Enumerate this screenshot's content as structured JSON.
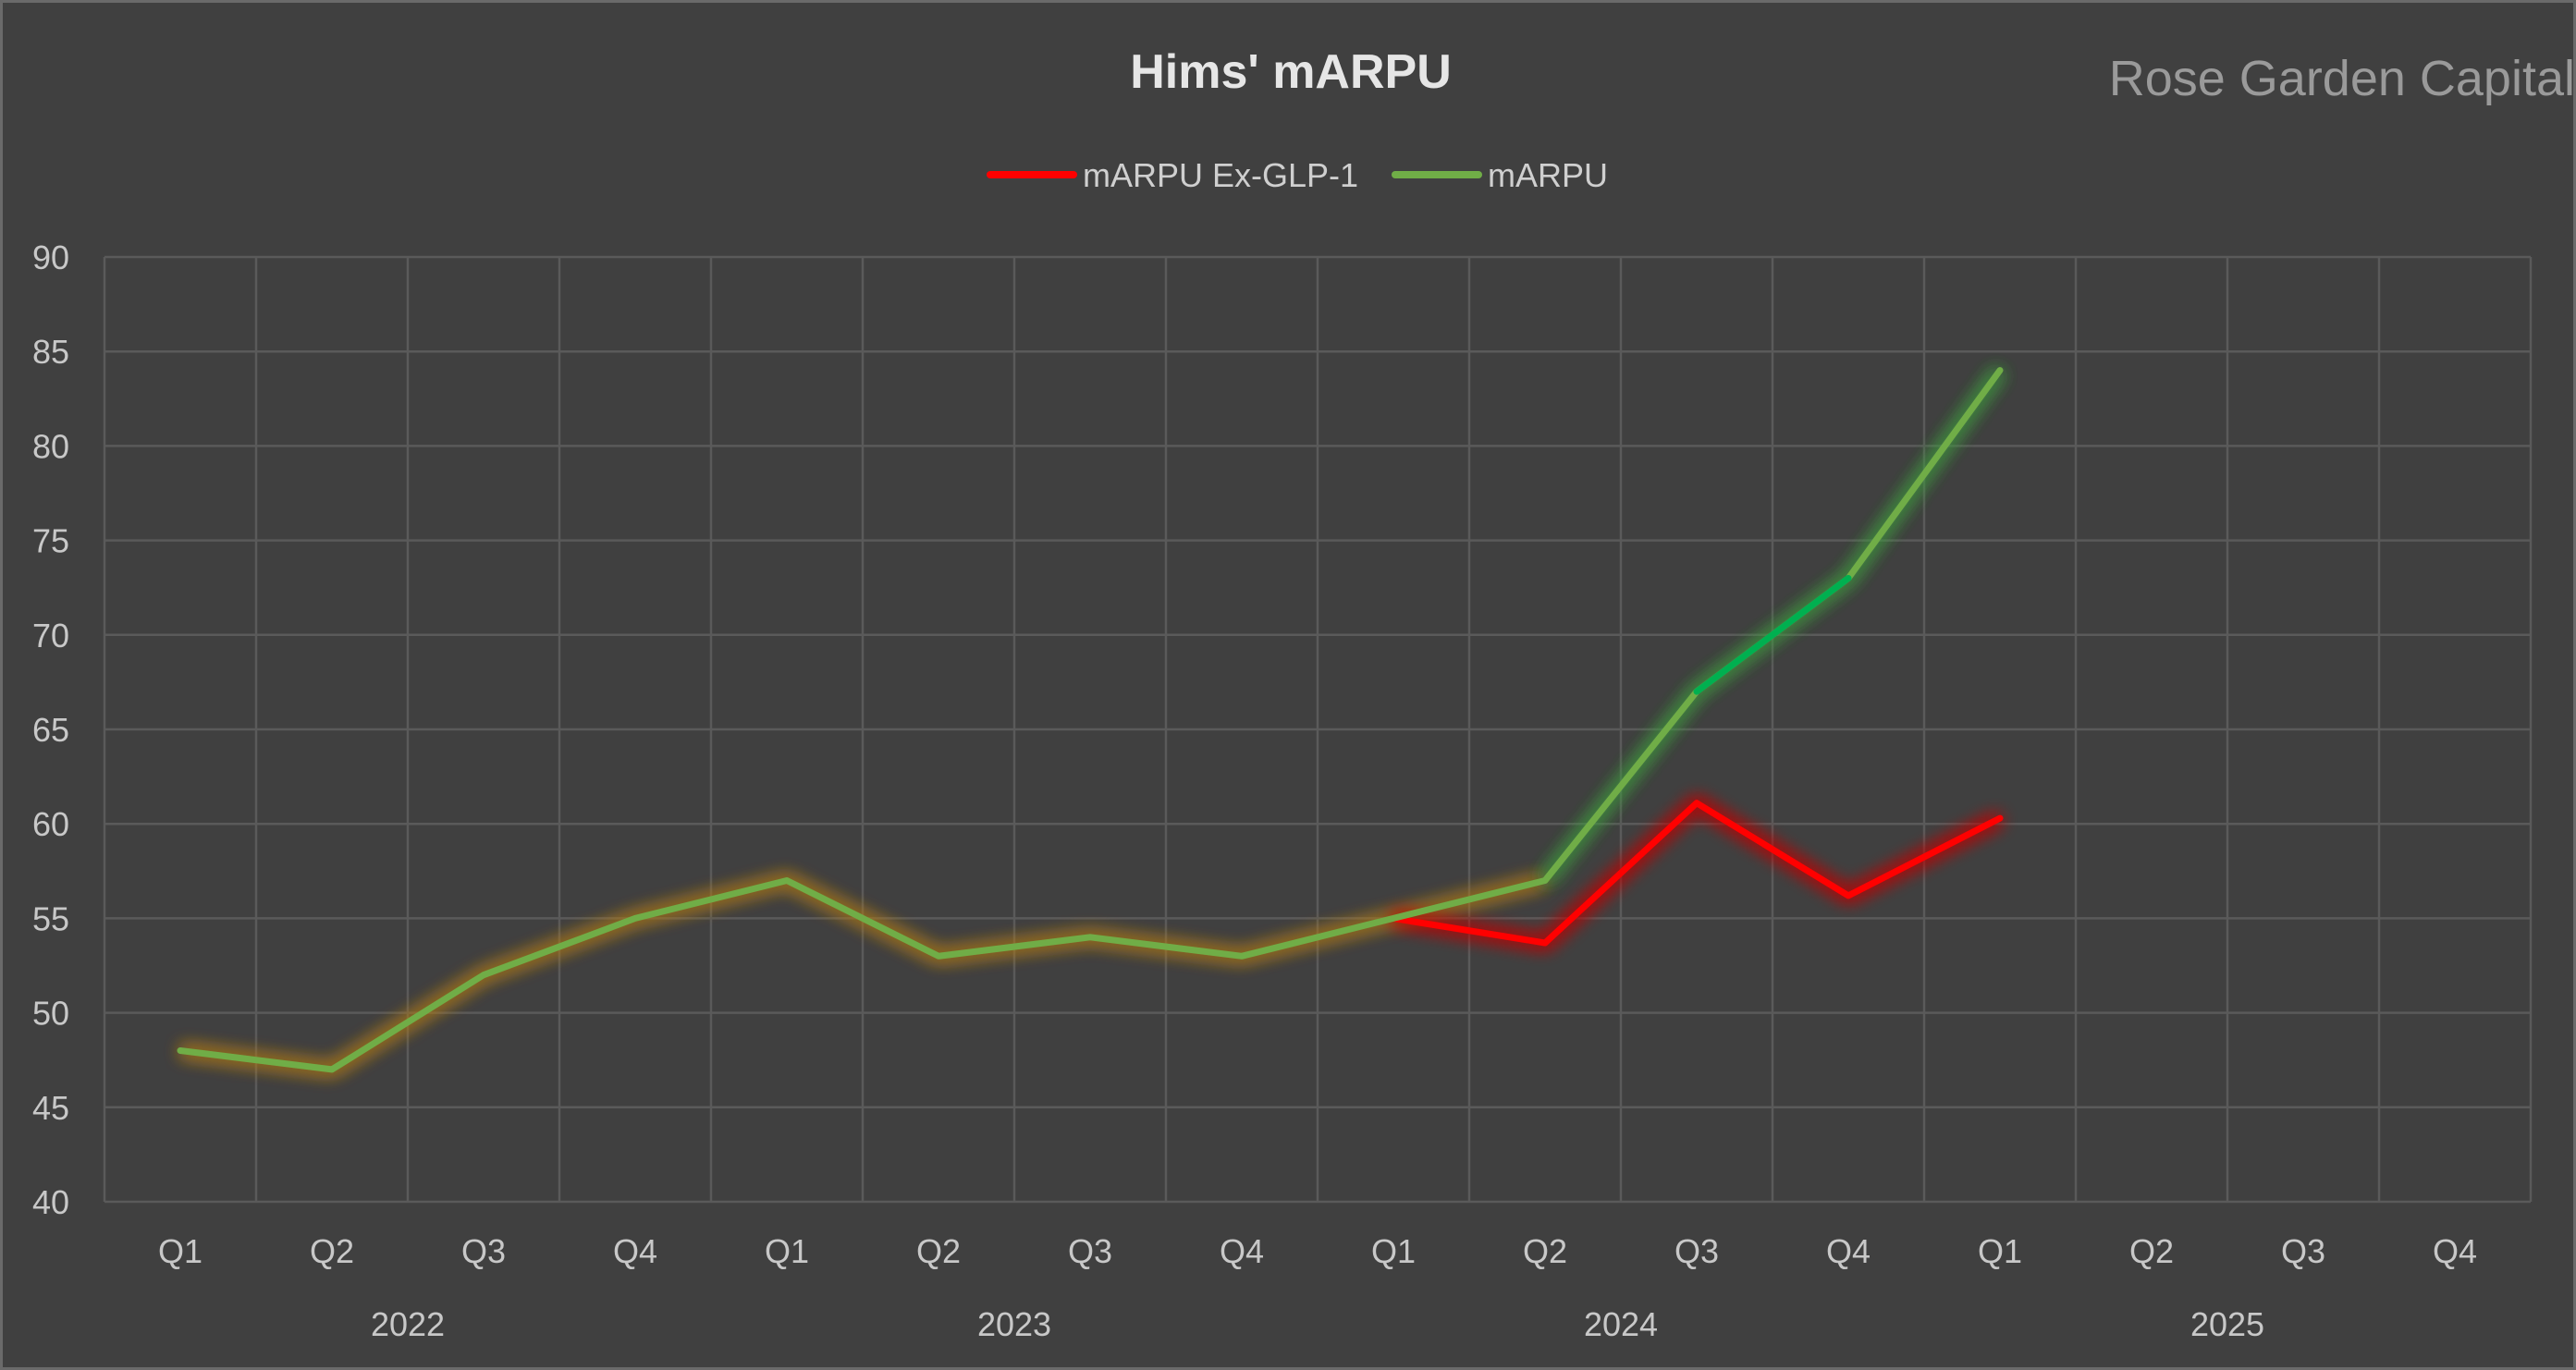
{
  "chart_data": {
    "type": "line",
    "title": "Hims' mARPU",
    "watermark": "Rose Garden Capital",
    "xlabel": "",
    "ylabel": "",
    "ylim": [
      40,
      90
    ],
    "yticks": [
      40,
      45,
      50,
      55,
      60,
      65,
      70,
      75,
      80,
      85,
      90
    ],
    "grid": true,
    "legend_position": "top-center",
    "categories": [
      "Q1",
      "Q2",
      "Q3",
      "Q4",
      "Q1",
      "Q2",
      "Q3",
      "Q4",
      "Q1",
      "Q2",
      "Q3",
      "Q4",
      "Q1",
      "Q2",
      "Q3",
      "Q4"
    ],
    "year_groups": [
      {
        "label": "2022",
        "span": 4
      },
      {
        "label": "2023",
        "span": 4
      },
      {
        "label": "2024",
        "span": 4
      },
      {
        "label": "2025",
        "span": 4
      }
    ],
    "series": [
      {
        "name": "mARPU Ex-GLP-1",
        "color": "#ff0000",
        "values": [
          null,
          null,
          null,
          null,
          null,
          null,
          null,
          null,
          55,
          53.7,
          61.1,
          56.2,
          60.3,
          null,
          null,
          null
        ]
      },
      {
        "name": "mARPU",
        "color": "#70ad47",
        "values": [
          48,
          47,
          52,
          55,
          57,
          53,
          54,
          53,
          55,
          57,
          67,
          73,
          84,
          null,
          null,
          null
        ]
      }
    ]
  }
}
